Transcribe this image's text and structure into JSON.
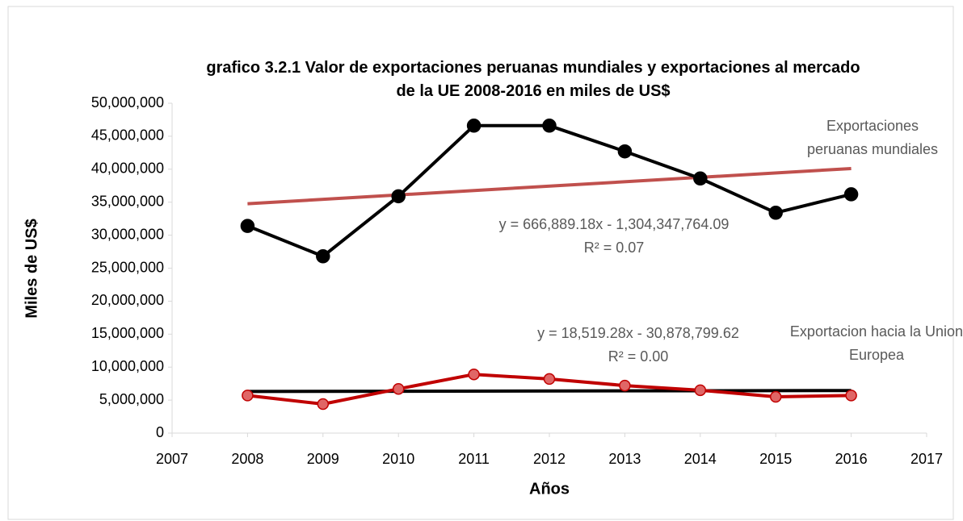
{
  "chart_data": {
    "type": "line",
    "title": "grafico 3.2.1 Valor de exportaciones peruanas mundiales y exportaciones al mercado de la UE 2008-2016 en miles de US$",
    "xlabel": "Años",
    "ylabel": "Miles de US$",
    "x": [
      2008,
      2009,
      2010,
      2011,
      2012,
      2013,
      2014,
      2015,
      2016
    ],
    "series": [
      {
        "name": "Exportaciones peruanas mundiales",
        "color": "#000000",
        "marker_fill": "#000000",
        "values": [
          31400000,
          26800000,
          35900000,
          46600000,
          46600000,
          42700000,
          38600000,
          33400000,
          36200000
        ]
      },
      {
        "name": "Exportacion hacia la Union Europea",
        "color": "#c00000",
        "marker_fill": "#e06666",
        "values": [
          5700000,
          4400000,
          6700000,
          8900000,
          8200000,
          7200000,
          6500000,
          5500000,
          5700000
        ]
      }
    ],
    "trendlines": [
      {
        "color": "#c0504d",
        "x": [
          2008,
          2016
        ],
        "values": [
          34765709,
          40100822
        ],
        "equation": "y = 666,889.18x - 1,304,347,764.09",
        "r2": "R² = 0.07"
      },
      {
        "color": "#000000",
        "x": [
          2008,
          2016
        ],
        "values": [
          6307915,
          6456069
        ],
        "equation": "y = 18,519.28x - 30,878,799.62",
        "r2": "R² = 0.00"
      }
    ],
    "xlim": [
      2007,
      2017
    ],
    "xticks": [
      2007,
      2008,
      2009,
      2010,
      2011,
      2012,
      2013,
      2014,
      2015,
      2016,
      2017
    ],
    "ylim": [
      0,
      50000000
    ],
    "yticks": [
      0,
      {
        "value": 5000000,
        "label": "5,000,000"
      },
      {
        "value": 10000000,
        "label": "10,000,000"
      },
      {
        "value": 15000000,
        "label": "15,000,000"
      },
      {
        "value": 20000000,
        "label": "20,000,000"
      },
      {
        "value": 25000000,
        "label": "25,000,000"
      },
      {
        "value": 30000000,
        "label": "30,000,000"
      },
      {
        "value": 35000000,
        "label": "35,000,000"
      },
      {
        "value": 40000000,
        "label": "40,000,000"
      },
      {
        "value": 45000000,
        "label": "45,000,000"
      },
      {
        "value": 50000000,
        "label": "50,000,000"
      }
    ],
    "grid": false
  }
}
